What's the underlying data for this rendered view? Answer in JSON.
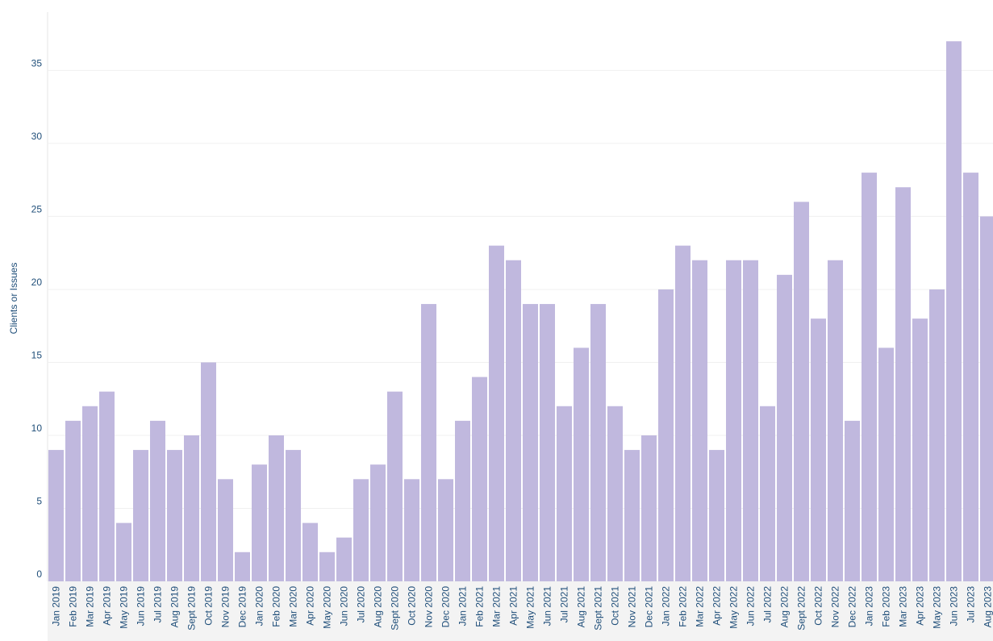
{
  "chart_data": {
    "type": "bar",
    "y_label": "Clients or Issues",
    "categories": [
      "Jan 2019",
      "Feb 2019",
      "Mar 2019",
      "Apr 2019",
      "May 2019",
      "Jun 2019",
      "Jul 2019",
      "Aug 2019",
      "Sept 2019",
      "Oct 2019",
      "Nov 2019",
      "Dec 2019",
      "Jan 2020",
      "Feb 2020",
      "Mar 2020",
      "Apr 2020",
      "May 2020",
      "Jun 2020",
      "Jul 2020",
      "Aug 2020",
      "Sept 2020",
      "Oct 2020",
      "Nov 2020",
      "Dec 2020",
      "Jan 2021",
      "Feb 2021",
      "Mar 2021",
      "Apr 2021",
      "May 2021",
      "Jun 2021",
      "Jul 2021",
      "Aug 2021",
      "Sept 2021",
      "Oct 2021",
      "Nov 2021",
      "Dec 2021",
      "Jan 2022",
      "Feb 2022",
      "Mar 2022",
      "Apr 2022",
      "May 2022",
      "Jun 2022",
      "Jul 2022",
      "Aug 2022",
      "Sept 2022",
      "Oct 2022",
      "Nov 2022",
      "Dec 2022",
      "Jan 2023",
      "Feb 2023",
      "Mar 2023",
      "Apr 2023",
      "May 2023",
      "Jun 2023",
      "Jul 2023",
      "Aug 2023"
    ],
    "values": [
      9,
      11,
      12,
      13,
      4,
      9,
      11,
      9,
      10,
      15,
      7,
      2,
      8,
      10,
      9,
      4,
      2,
      3,
      7,
      8,
      13,
      7,
      19,
      7,
      11,
      14,
      23,
      22,
      19,
      19,
      12,
      16,
      19,
      12,
      9,
      10,
      20,
      23,
      22,
      9,
      22,
      22,
      12,
      21,
      26,
      18,
      22,
      11,
      28,
      16,
      27,
      18,
      20,
      37,
      28,
      25
    ],
    "color": "#c0b8de",
    "ylim": [
      0,
      39
    ],
    "yticks": [
      0,
      5,
      10,
      15,
      20,
      25,
      30,
      35
    ],
    "grid": true
  }
}
